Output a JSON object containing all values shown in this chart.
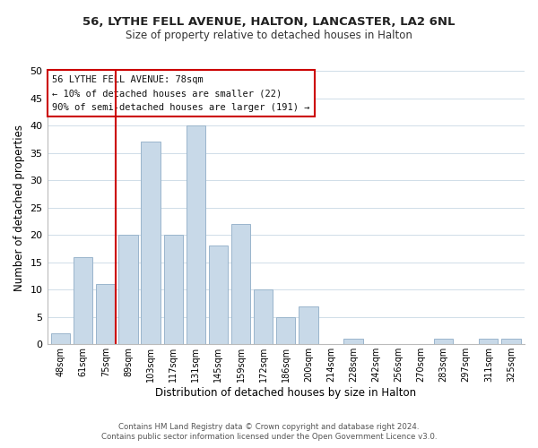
{
  "title_line1": "56, LYTHE FELL AVENUE, HALTON, LANCASTER, LA2 6NL",
  "title_line2": "Size of property relative to detached houses in Halton",
  "xlabel": "Distribution of detached houses by size in Halton",
  "ylabel": "Number of detached properties",
  "bar_labels": [
    "48sqm",
    "61sqm",
    "75sqm",
    "89sqm",
    "103sqm",
    "117sqm",
    "131sqm",
    "145sqm",
    "159sqm",
    "172sqm",
    "186sqm",
    "200sqm",
    "214sqm",
    "228sqm",
    "242sqm",
    "256sqm",
    "270sqm",
    "283sqm",
    "297sqm",
    "311sqm",
    "325sqm"
  ],
  "bar_values": [
    2,
    16,
    11,
    20,
    37,
    20,
    40,
    18,
    22,
    10,
    5,
    7,
    0,
    1,
    0,
    0,
    0,
    1,
    0,
    1,
    1
  ],
  "bar_color": "#c8d9e8",
  "bar_edge_color": "#9ab5cc",
  "highlight_index": 2,
  "highlight_color": "#cc0000",
  "ylim": [
    0,
    50
  ],
  "yticks": [
    0,
    5,
    10,
    15,
    20,
    25,
    30,
    35,
    40,
    45,
    50
  ],
  "annotation_title": "56 LYTHE FELL AVENUE: 78sqm",
  "annotation_line1": "← 10% of detached houses are smaller (22)",
  "annotation_line2": "90% of semi-detached houses are larger (191) →",
  "annotation_box_color": "#ffffff",
  "annotation_box_edge": "#cc0000",
  "footer_line1": "Contains HM Land Registry data © Crown copyright and database right 2024.",
  "footer_line2": "Contains public sector information licensed under the Open Government Licence v3.0.",
  "background_color": "#ffffff",
  "grid_color": "#d0dde8"
}
